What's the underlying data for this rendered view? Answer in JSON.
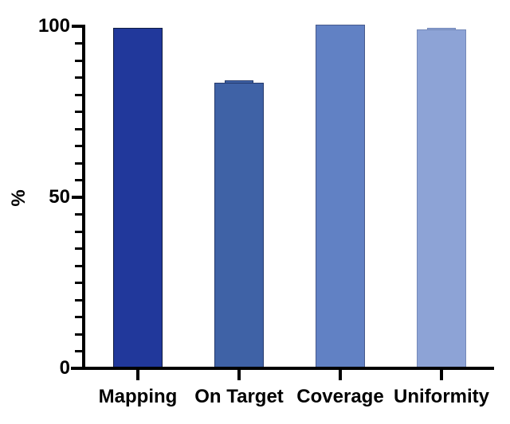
{
  "chart_data": {
    "type": "bar",
    "title": "",
    "categories": [
      "Mapping",
      "On Target",
      "Coverage",
      "Uniformity"
    ],
    "values": [
      99.5,
      83.5,
      100.5,
      99
    ],
    "bar_colors": [
      "#21389B",
      "#3F62A6",
      "#6181C4",
      "#8DA3D6"
    ],
    "bar_border_colors": [
      "#101C3F",
      "#24396B",
      "#46598C",
      "#7488B8"
    ],
    "error_caps": [
      false,
      true,
      false,
      true
    ],
    "xlabel": "",
    "ylabel": "%",
    "ylim": [
      0,
      100
    ],
    "yticks_major": [
      0,
      50,
      100
    ],
    "ytick_minor_step": 5,
    "grid": false,
    "legend": null,
    "axis_color": "#000000",
    "background_color": "#FFFFFF"
  }
}
